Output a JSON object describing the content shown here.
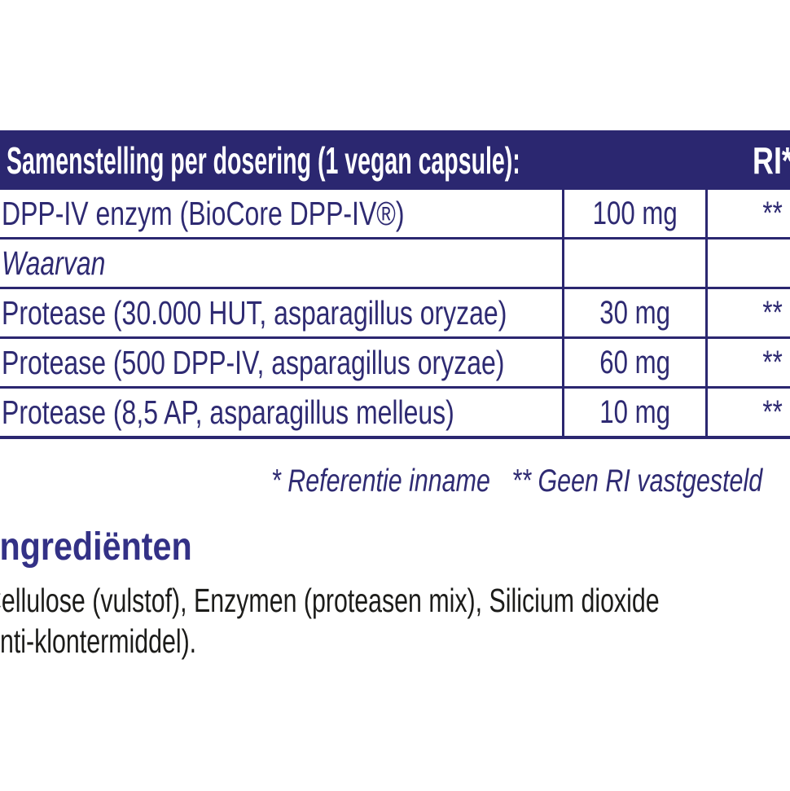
{
  "table": {
    "header": {
      "title": "Samenstelling per dosering (1 vegan capsule):",
      "ri_label": "RI*"
    },
    "columns": [
      "ingredient",
      "amount",
      "ri"
    ],
    "rows": [
      {
        "label": "DPP-IV enzym (BioCore DPP-IV®)",
        "amount": "100 mg",
        "ri": "**"
      },
      {
        "label": "Waarvan",
        "amount": "",
        "ri": ""
      },
      {
        "label": "Protease (30.000 HUT, asparagillus oryzae)",
        "amount": "30 mg",
        "ri": "**"
      },
      {
        "label": "Protease (500 DPP-IV, asparagillus oryzae)",
        "amount": "60 mg",
        "ri": "**"
      },
      {
        "label": "Protease (8,5 AP, asparagillus melleus)",
        "amount": "10 mg",
        "ri": "**"
      }
    ],
    "footnotes": {
      "reference": "* Referentie inname",
      "no_ri": "** Geen RI vastgesteld"
    }
  },
  "ingredients": {
    "heading": "Ingrediënten",
    "line1": "Cellulose (vulstof), Enzymen (proteasen mix), Silicium dioxide",
    "line2": "(anti-klontermiddel)."
  },
  "colors": {
    "header_bar": "#2b2770",
    "table_border": "#2b2770",
    "table_text": "#2e2a72",
    "heading_text": "#333186",
    "body_text": "#1c1c1a",
    "background": "#ffffff"
  }
}
